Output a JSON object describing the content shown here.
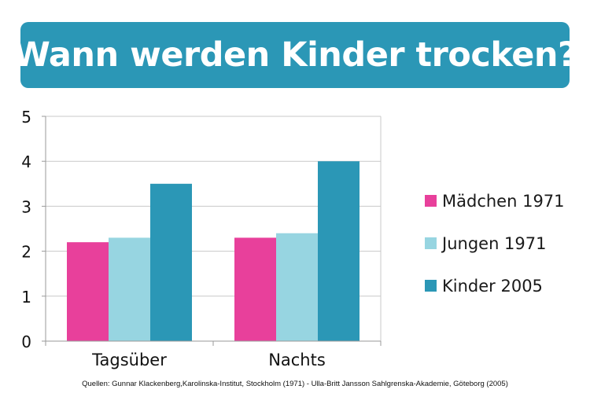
{
  "banner": {
    "title": "Wann werden Kinder trocken?",
    "color": "#2b97b6"
  },
  "chart_data": {
    "type": "bar",
    "categories": [
      "Tagsüber",
      "Nachts"
    ],
    "series": [
      {
        "name": "Mädchen 1971",
        "color": "#e8409b",
        "values": [
          2.2,
          2.3
        ]
      },
      {
        "name": "Jungen 1971",
        "color": "#97d5e1",
        "values": [
          2.3,
          2.4
        ]
      },
      {
        "name": "Kinder 2005",
        "color": "#2b97b6",
        "values": [
          3.5,
          4.0
        ]
      }
    ],
    "ylim": [
      0,
      5
    ],
    "yticks": [
      "0",
      "1",
      "2",
      "3",
      "4",
      "5"
    ],
    "grid": true,
    "legend_position": "right"
  },
  "source": "Quellen: Gunnar Klackenberg,Karolinska-Institut, Stockholm (1971) - Ulla-Britt Jansson Sahlgrenska-Akademie, Göteborg (2005)"
}
